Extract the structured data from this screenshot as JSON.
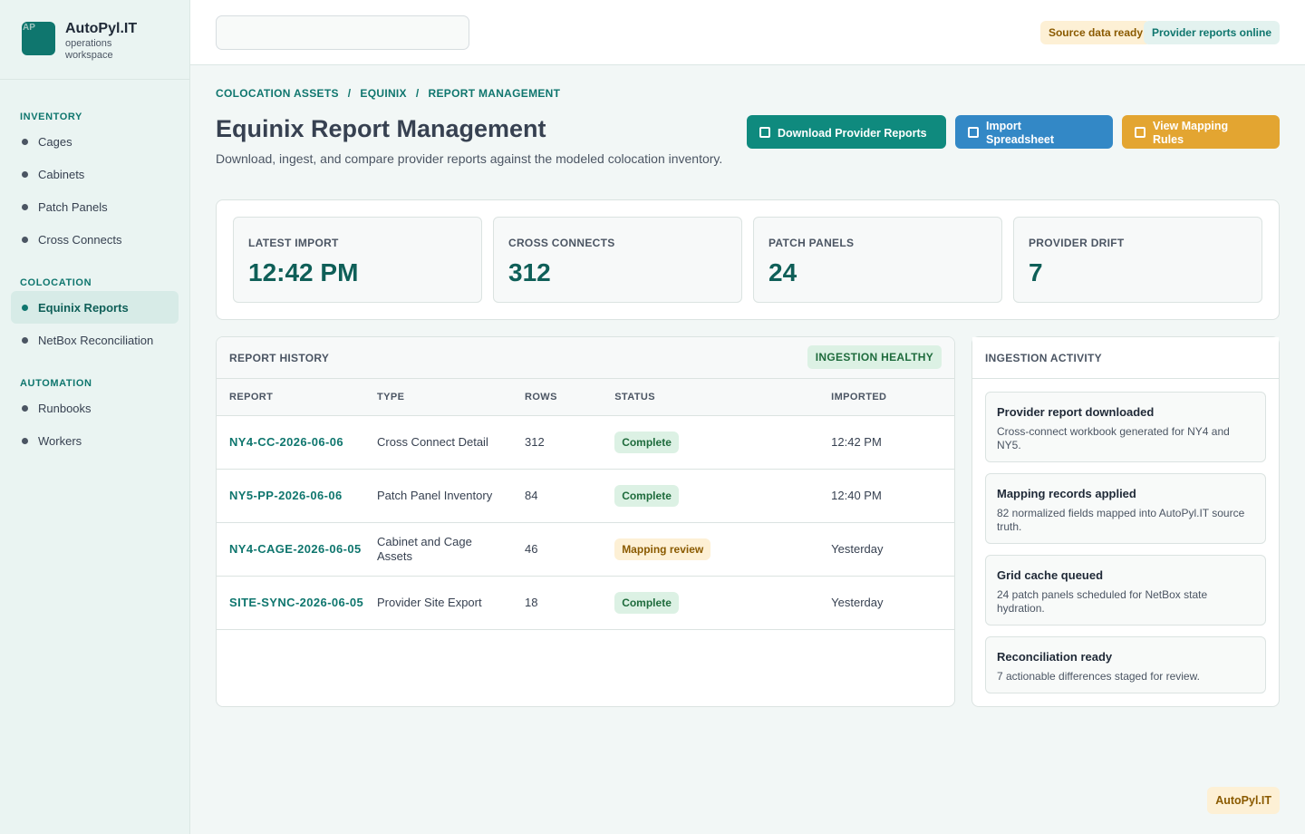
{
  "brand": {
    "logo_text": "AP",
    "name": "AutoPyl.IT",
    "subtitle": "operations workspace"
  },
  "sidebar": {
    "sections": [
      {
        "title": "INVENTORY",
        "items": [
          "Cages",
          "Cabinets",
          "Patch Panels",
          "Cross Connects"
        ]
      },
      {
        "title": "COLOCATION",
        "items": [
          "Equinix Reports",
          "NetBox Reconciliation"
        ]
      },
      {
        "title": "AUTOMATION",
        "items": [
          "Runbooks",
          "Workers"
        ]
      }
    ],
    "active_item": "Equinix Reports"
  },
  "topbar": {
    "search_value": "",
    "badges": [
      "Source data ready",
      "Provider reports online"
    ]
  },
  "breadcrumb": [
    "COLOCATION ASSETS",
    "/",
    "EQUINIX",
    "/",
    "REPORT MANAGEMENT"
  ],
  "page": {
    "title": "Equinix Report Management",
    "description": "Download, ingest, and compare provider reports against the modeled colocation inventory."
  },
  "actions": {
    "download": "Download Provider Reports",
    "import": "Import Spreadsheet",
    "mapping": "View Mapping Rules"
  },
  "stats": [
    {
      "label": "LATEST IMPORT",
      "value": "12:42 PM"
    },
    {
      "label": "CROSS CONNECTS",
      "value": "312"
    },
    {
      "label": "PATCH PANELS",
      "value": "24"
    },
    {
      "label": "PROVIDER DRIFT",
      "value": "7"
    }
  ],
  "history": {
    "title": "REPORT HISTORY",
    "badge": "INGESTION HEALTHY",
    "columns": [
      "REPORT",
      "TYPE",
      "ROWS",
      "STATUS",
      "IMPORTED"
    ],
    "rows": [
      {
        "report": "NY4-CC-2026-06-06",
        "type": "Cross Connect Detail",
        "rows": "312",
        "status": "Complete",
        "imported": "12:42 PM"
      },
      {
        "report": "NY5-PP-2026-06-06",
        "type": "Patch Panel Inventory",
        "rows": "84",
        "status": "Complete",
        "imported": "12:40 PM"
      },
      {
        "report": "NY4-CAGE-2026-06-05",
        "type": "Cabinet and Cage Assets",
        "rows": "46",
        "status": "Mapping review",
        "imported": "Yesterday"
      },
      {
        "report": "SITE-SYNC-2026-06-05",
        "type": "Provider Site Export",
        "rows": "18",
        "status": "Complete",
        "imported": "Yesterday"
      }
    ]
  },
  "activity": {
    "title": "INGESTION ACTIVITY",
    "items": [
      {
        "title": "Provider report downloaded",
        "desc": "Cross-connect workbook generated for NY4 and NY5."
      },
      {
        "title": "Mapping records applied",
        "desc": "82 normalized fields mapped into AutoPyl.IT source truth."
      },
      {
        "title": "Grid cache queued",
        "desc": "24 patch panels scheduled for NetBox state hydration."
      },
      {
        "title": "Reconciliation ready",
        "desc": "7 actionable differences staged for review."
      }
    ]
  },
  "footer_badge": "AutoPyl.IT",
  "colors": {
    "accent": "#0f766e",
    "blue": "#3388c6",
    "amber": "#e3a531"
  }
}
